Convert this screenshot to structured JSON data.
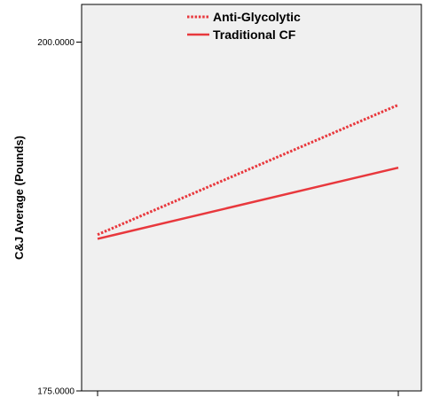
{
  "chart_data": {
    "type": "line",
    "title": "",
    "xlabel": "",
    "ylabel": "C&J Average (Pounds)",
    "ylim": [
      175,
      202.7
    ],
    "y_ticks": [
      {
        "value": 175,
        "label": "175.0000"
      },
      {
        "value": 200,
        "label": "200.0000"
      }
    ],
    "x": [
      0,
      1
    ],
    "x_tick_labels": [
      "",
      ""
    ],
    "grid": false,
    "legend_position": "top-center",
    "series": [
      {
        "name": "Anti-Glycolytic",
        "style": "dotted",
        "color": "#e8383d",
        "values": [
          186.2,
          195.5
        ]
      },
      {
        "name": "Traditional CF",
        "style": "solid",
        "color": "#e8383d",
        "values": [
          185.9,
          191.0
        ]
      }
    ]
  }
}
